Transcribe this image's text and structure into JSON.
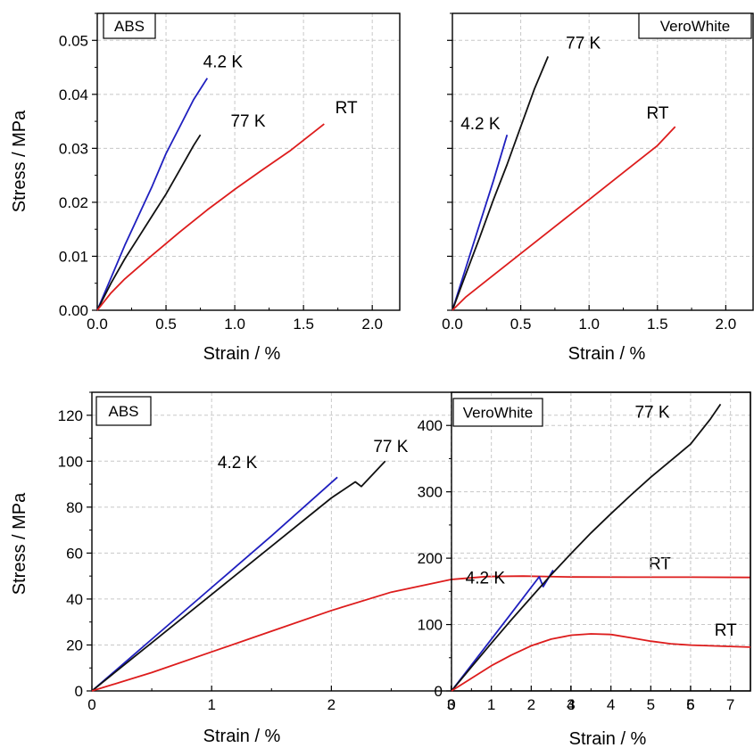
{
  "chart_data": [
    {
      "type": "line",
      "panel_label": "ABS",
      "xlabel": "Strain / %",
      "ylabel": "Stress / MPa",
      "xlim": [
        0,
        2.2
      ],
      "ylim": [
        0,
        0.055
      ],
      "xticks": [
        0.0,
        0.5,
        1.0,
        1.5,
        2.0
      ],
      "xtick_labels": [
        "0.0",
        "0.5",
        "1.0",
        "1.5",
        "2.0"
      ],
      "yticks": [
        0,
        0.01,
        0.02,
        0.03,
        0.04,
        0.05
      ],
      "ytick_labels": [
        "0.00",
        "0.01",
        "0.02",
        "0.03",
        "0.04",
        "0.05"
      ],
      "grid": true,
      "series": [
        {
          "name": "4.2 K",
          "color": "#1f1fbf",
          "x": [
            0,
            0.1,
            0.2,
            0.3,
            0.4,
            0.5,
            0.6,
            0.7,
            0.8
          ],
          "y": [
            0,
            0.006,
            0.012,
            0.0175,
            0.023,
            0.029,
            0.034,
            0.039,
            0.043
          ]
        },
        {
          "name": "77 K",
          "color": "#111111",
          "x": [
            0,
            0.1,
            0.2,
            0.3,
            0.4,
            0.5,
            0.6,
            0.7,
            0.75
          ],
          "y": [
            0,
            0.005,
            0.0095,
            0.0135,
            0.0175,
            0.0215,
            0.026,
            0.0305,
            0.0325
          ]
        },
        {
          "name": "RT",
          "color": "#dd1c1c",
          "x": [
            0,
            0.1,
            0.2,
            0.4,
            0.6,
            0.8,
            1.0,
            1.2,
            1.4,
            1.65
          ],
          "y": [
            0,
            0.0032,
            0.0058,
            0.0102,
            0.0145,
            0.0186,
            0.0224,
            0.026,
            0.0295,
            0.0345
          ]
        }
      ],
      "annotations": [
        {
          "text": "4.2 K",
          "x": 0.77,
          "y": 0.045
        },
        {
          "text": "77 K",
          "x": 0.97,
          "y": 0.034
        },
        {
          "text": "RT",
          "x": 1.73,
          "y": 0.0365
        }
      ]
    },
    {
      "type": "line",
      "panel_label": "VeroWhite",
      "xlabel": "Strain / %",
      "ylabel": "",
      "xlim": [
        0,
        2.2
      ],
      "ylim": [
        0,
        0.055
      ],
      "xticks": [
        0.0,
        0.5,
        1.0,
        1.5,
        2.0
      ],
      "xtick_labels": [
        "0.0",
        "0.5",
        "1.0",
        "1.5",
        "2.0"
      ],
      "yticks": [
        0,
        0.01,
        0.02,
        0.03,
        0.04,
        0.05
      ],
      "ytick_labels": [],
      "grid": true,
      "series": [
        {
          "name": "4.2 K",
          "color": "#1f1fbf",
          "x": [
            0,
            0.1,
            0.2,
            0.3,
            0.4
          ],
          "y": [
            0,
            0.008,
            0.016,
            0.024,
            0.0325
          ]
        },
        {
          "name": "77 K",
          "color": "#111111",
          "x": [
            0,
            0.1,
            0.2,
            0.3,
            0.4,
            0.5,
            0.6,
            0.7
          ],
          "y": [
            0,
            0.0068,
            0.0135,
            0.0205,
            0.027,
            0.034,
            0.041,
            0.047
          ]
        },
        {
          "name": "RT",
          "color": "#dd1c1c",
          "x": [
            0,
            0.1,
            0.25,
            0.5,
            0.75,
            1.0,
            1.25,
            1.5,
            1.63
          ],
          "y": [
            0,
            0.0025,
            0.0055,
            0.0105,
            0.0155,
            0.0205,
            0.0255,
            0.0305,
            0.034
          ]
        }
      ],
      "annotations": [
        {
          "text": "77 K",
          "x": 0.83,
          "y": 0.0485
        },
        {
          "text": "4.2 K",
          "x": 0.06,
          "y": 0.0335
        },
        {
          "text": "RT",
          "x": 1.42,
          "y": 0.0355
        }
      ]
    },
    {
      "type": "line",
      "panel_label": "ABS",
      "xlabel": "Strain / %",
      "ylabel": "Stress / MPa",
      "xlim": [
        0,
        5.5
      ],
      "ylim": [
        0,
        130
      ],
      "xticks": [
        0,
        1,
        2,
        3,
        4,
        5
      ],
      "xtick_labels": [
        "0",
        "1",
        "2",
        "3",
        "4",
        "5"
      ],
      "yticks": [
        0,
        20,
        40,
        60,
        80,
        100,
        120
      ],
      "ytick_labels": [
        "0",
        "20",
        "40",
        "60",
        "80",
        "100",
        "120"
      ],
      "grid": true,
      "series": [
        {
          "name": "4.2 K",
          "color": "#1f1fbf",
          "x": [
            0,
            0.5,
            1.0,
            1.5,
            2.05
          ],
          "y": [
            0,
            22.5,
            45,
            67.5,
            93
          ]
        },
        {
          "name": "77 K",
          "color": "#111111",
          "x": [
            0,
            0.5,
            1.0,
            1.5,
            2.0,
            2.2,
            2.25,
            2.45
          ],
          "y": [
            0,
            21,
            42,
            63,
            84,
            91,
            89,
            100
          ]
        },
        {
          "name": "RT",
          "color": "#dd1c1c",
          "x": [
            0,
            0.5,
            1.0,
            1.5,
            2.0,
            2.5,
            3.0,
            3.3,
            3.6,
            4.0,
            4.5,
            5.0,
            5.5
          ],
          "y": [
            0,
            8,
            17,
            26,
            35,
            43,
            48.5,
            49.8,
            50,
            49.6,
            49.5,
            49.5,
            49.4
          ]
        }
      ],
      "annotations": [
        {
          "text": "4.2 K",
          "x": 1.05,
          "y": 97
        },
        {
          "text": "77 K",
          "x": 2.35,
          "y": 104
        },
        {
          "text": "RT",
          "x": 4.65,
          "y": 53
        }
      ]
    },
    {
      "type": "line",
      "panel_label": "VeroWhite",
      "xlabel": "Strain / %",
      "ylabel": "",
      "xlim": [
        0,
        7.5
      ],
      "ylim": [
        0,
        450
      ],
      "xticks": [
        0,
        1,
        2,
        3,
        4,
        5,
        6,
        7
      ],
      "xtick_labels": [
        "0",
        "1",
        "2",
        "3",
        "4",
        "5",
        "6",
        "7"
      ],
      "yticks": [
        0,
        100,
        200,
        300,
        400
      ],
      "ytick_labels": [
        "0",
        "100",
        "200",
        "300",
        "400"
      ],
      "grid": true,
      "series": [
        {
          "name": "4.2 K",
          "color": "#1f1fbf",
          "x": [
            0,
            0.5,
            1.0,
            1.5,
            2.2,
            2.3,
            2.55
          ],
          "y": [
            0,
            39,
            78,
            117,
            172,
            157,
            182
          ]
        },
        {
          "name": "77 K",
          "color": "#111111",
          "x": [
            0,
            0.5,
            1.0,
            1.5,
            2.0,
            2.5,
            3.0,
            3.5,
            4.0,
            4.5,
            5.0,
            5.5,
            6.0,
            6.5,
            6.75
          ],
          "y": [
            0,
            36,
            72,
            107,
            141,
            175,
            207,
            238,
            267,
            295,
            322,
            347,
            372,
            410,
            432
          ]
        },
        {
          "name": "RT",
          "color": "#dd1c1c",
          "x": [
            0,
            0.5,
            1.0,
            1.5,
            2.0,
            2.5,
            3.0,
            3.5,
            4.0,
            4.5,
            5.0,
            5.5,
            6.0,
            6.5,
            7.0,
            7.5
          ],
          "y": [
            0,
            19,
            38,
            54,
            68,
            78,
            84,
            86,
            85,
            80,
            75,
            71,
            69,
            68,
            67,
            66
          ]
        }
      ],
      "annotations": [
        {
          "text": "77 K",
          "x": 4.6,
          "y": 412
        },
        {
          "text": "4.2 K",
          "x": 0.35,
          "y": 162
        },
        {
          "text": "RT",
          "x": 6.6,
          "y": 83
        }
      ]
    }
  ]
}
